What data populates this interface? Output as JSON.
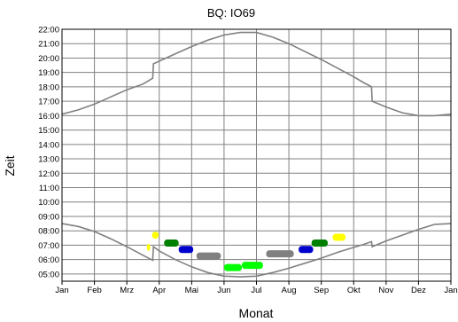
{
  "chart_data": {
    "type": "line",
    "title": "BQ: IO69",
    "xlabel": "Monat",
    "ylabel": "Zeit",
    "x_tick_labels": [
      "Jan",
      "Feb",
      "Mrz",
      "Apr",
      "Mai",
      "Jun",
      "Jul",
      "Aug",
      "Sep",
      "Okt",
      "Nov",
      "Dez",
      "Jan"
    ],
    "y_tick_labels": [
      "05:00",
      "06:00",
      "07:00",
      "08:00",
      "09:00",
      "10:00",
      "11:00",
      "12:00",
      "13:00",
      "14:00",
      "15:00",
      "16:00",
      "17:00",
      "18:00",
      "19:00",
      "20:00",
      "21:00",
      "22:00"
    ],
    "ylim": [
      4.5,
      22.0
    ],
    "xlim_months": [
      0,
      12
    ],
    "grid": true,
    "series": [
      {
        "role": "sunset",
        "color": "#808080",
        "points": [
          [
            0.0,
            16.1
          ],
          [
            0.5,
            16.4
          ],
          [
            1.0,
            16.8
          ],
          [
            1.5,
            17.3
          ],
          [
            2.0,
            17.8
          ],
          [
            2.5,
            18.2
          ],
          [
            2.8,
            18.6
          ],
          [
            2.82,
            19.6
          ],
          [
            3.5,
            20.3
          ],
          [
            4.0,
            20.8
          ],
          [
            4.5,
            21.25
          ],
          [
            5.0,
            21.6
          ],
          [
            5.5,
            21.78
          ],
          [
            6.0,
            21.78
          ],
          [
            6.5,
            21.45
          ],
          [
            7.0,
            21.0
          ],
          [
            7.5,
            20.45
          ],
          [
            8.0,
            19.9
          ],
          [
            8.5,
            19.3
          ],
          [
            9.0,
            18.7
          ],
          [
            9.3,
            18.3
          ],
          [
            9.55,
            18.0
          ],
          [
            9.57,
            17.0
          ],
          [
            10.0,
            16.6
          ],
          [
            10.5,
            16.2
          ],
          [
            11.0,
            16.0
          ],
          [
            11.5,
            16.0
          ],
          [
            12.0,
            16.1
          ]
        ]
      },
      {
        "role": "sunrise",
        "color": "#808080",
        "points": [
          [
            0.0,
            8.5
          ],
          [
            0.5,
            8.3
          ],
          [
            1.0,
            7.95
          ],
          [
            1.5,
            7.45
          ],
          [
            2.0,
            6.9
          ],
          [
            2.5,
            6.3
          ],
          [
            2.8,
            5.95
          ],
          [
            2.82,
            6.9
          ],
          [
            3.0,
            6.6
          ],
          [
            3.5,
            6.0
          ],
          [
            4.0,
            5.5
          ],
          [
            4.5,
            5.1
          ],
          [
            5.0,
            4.85
          ],
          [
            5.5,
            4.8
          ],
          [
            6.0,
            4.85
          ],
          [
            6.5,
            5.1
          ],
          [
            7.0,
            5.4
          ],
          [
            7.5,
            5.75
          ],
          [
            8.0,
            6.1
          ],
          [
            8.5,
            6.5
          ],
          [
            9.0,
            6.85
          ],
          [
            9.3,
            7.05
          ],
          [
            9.55,
            7.25
          ],
          [
            9.57,
            6.9
          ],
          [
            10.0,
            7.3
          ],
          [
            10.5,
            7.7
          ],
          [
            11.0,
            8.1
          ],
          [
            11.5,
            8.45
          ],
          [
            12.0,
            8.5
          ]
        ]
      }
    ],
    "observations": [
      {
        "color": "#ffff00",
        "x0": 2.62,
        "x1": 2.72,
        "y": 6.85
      },
      {
        "color": "#ffff00",
        "x0": 2.78,
        "x1": 2.98,
        "y": 7.7
      },
      {
        "color": "#008000",
        "x0": 3.15,
        "x1": 3.6,
        "y": 7.15
      },
      {
        "color": "#0000cc",
        "x0": 3.6,
        "x1": 4.05,
        "y": 6.7
      },
      {
        "color": "#808080",
        "x0": 4.15,
        "x1": 4.9,
        "y": 6.25
      },
      {
        "color": "#00ff00",
        "x0": 5.0,
        "x1": 5.55,
        "y": 5.45
      },
      {
        "color": "#00ff00",
        "x0": 5.55,
        "x1": 6.2,
        "y": 5.6
      },
      {
        "color": "#808080",
        "x0": 6.3,
        "x1": 7.15,
        "y": 6.4
      },
      {
        "color": "#0000cc",
        "x0": 7.3,
        "x1": 7.75,
        "y": 6.7
      },
      {
        "color": "#008000",
        "x0": 7.7,
        "x1": 8.2,
        "y": 7.15
      },
      {
        "color": "#ffff00",
        "x0": 8.35,
        "x1": 8.75,
        "y": 7.55
      }
    ],
    "colors": {
      "grid": "#808080",
      "frame": "#000000",
      "curve": "#808080"
    }
  }
}
